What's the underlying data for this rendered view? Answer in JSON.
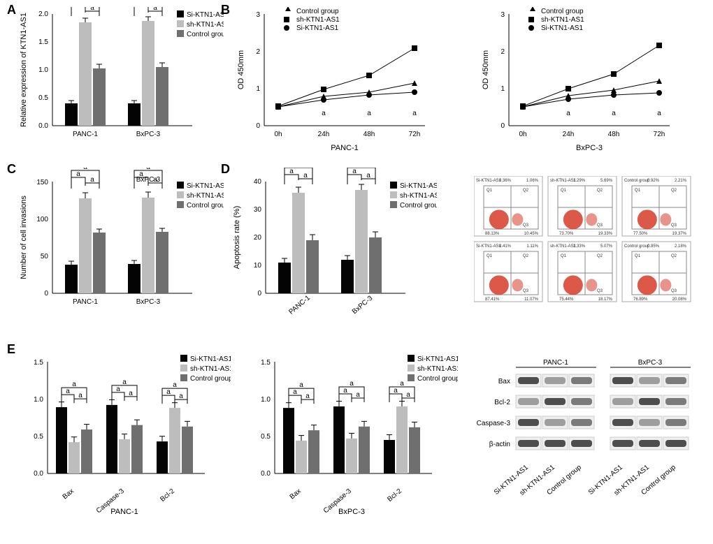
{
  "series_names": {
    "si": "Si-KTN1-AS1",
    "sh": "sh-KTN1-AS1",
    "ctrl": "Control group"
  },
  "colors": {
    "si": "#040404",
    "sh": "#bdbdbd",
    "ctrl": "#6f6f6f",
    "axis": "#000",
    "grid": "#000",
    "blot_bg": "#efefef",
    "blot_dark": "#3c3c3c",
    "flow_red": "#d63c2a"
  },
  "sig_letter": "a",
  "panelA": {
    "ylabel": "Relative expression of KTN1-AS1",
    "groups": [
      "PANC-1",
      "BxPC-3"
    ],
    "ylim": [
      0,
      2.0
    ],
    "ytick": 0.5,
    "bars": {
      "si": [
        0.4,
        0.4
      ],
      "sh": [
        1.85,
        1.88
      ],
      "ctrl": [
        1.03,
        1.05
      ]
    },
    "err": {
      "si": [
        0.03,
        0.03
      ],
      "sh": [
        0.07,
        0.07
      ],
      "ctrl": [
        0.07,
        0.07
      ]
    }
  },
  "panelB": {
    "ylabel": "OD 450mm",
    "timepoints": [
      "0h",
      "24h",
      "48h",
      "72h"
    ],
    "ylim": [
      0,
      3
    ],
    "ytick": 1,
    "panc1": {
      "ctrl": [
        0.5,
        0.78,
        0.9,
        1.15
      ],
      "sh": [
        0.52,
        0.98,
        1.35,
        2.08
      ],
      "si": [
        0.5,
        0.7,
        0.82,
        0.9
      ]
    },
    "bxpc3": {
      "ctrl": [
        0.5,
        0.8,
        0.95,
        1.2
      ],
      "sh": [
        0.52,
        1.0,
        1.38,
        2.15
      ],
      "si": [
        0.5,
        0.72,
        0.83,
        0.88
      ]
    },
    "xlabel_panc1": "PANC-1",
    "xlabel_bxpc3": "BxPC-3"
  },
  "panelC": {
    "ylabel": "Number of cell invasions",
    "groups": [
      "PANC-1",
      "BxPC-3"
    ],
    "ylim": [
      0,
      150
    ],
    "ytick": 50,
    "bars": {
      "si": [
        38,
        39
      ],
      "sh": [
        128,
        129
      ],
      "ctrl": [
        82,
        83
      ]
    },
    "err": {
      "si": [
        4,
        4
      ],
      "sh": [
        8,
        8
      ],
      "ctrl": [
        4,
        4
      ]
    }
  },
  "panelD": {
    "ylabel": "Apoptosis rate (%)",
    "groups": [
      "PANC-1",
      "BxPC-3"
    ],
    "ylim": [
      0,
      40
    ],
    "ytick": 10,
    "bars": {
      "si": [
        11,
        12
      ],
      "sh": [
        36,
        37
      ],
      "ctrl": [
        19,
        20
      ]
    },
    "err": {
      "si": [
        1.5,
        1.5
      ],
      "sh": [
        2,
        2
      ],
      "ctrl": [
        2,
        2
      ]
    },
    "flow": [
      [
        {
          "title": "Si-KTN1-AS1",
          "q1": "0.36%",
          "q2": "1.06%",
          "q4": "88.13%",
          "q3": "10.45%"
        },
        {
          "title": "sh-KTN1-AS1",
          "q1": "1.29%",
          "q2": "5.69%",
          "q4": "73.70%",
          "q3": "19.33%"
        },
        {
          "title": "Control group",
          "q1": "0.92%",
          "q2": "2.21%",
          "q4": "77.50%",
          "q3": "19.37%"
        }
      ],
      [
        {
          "title": "Si-KTN1-AS1",
          "q1": "0.41%",
          "q2": "1.11%",
          "q4": "87.41%",
          "q3": "11.07%"
        },
        {
          "title": "sh-KTN1-AS1",
          "q1": "1.33%",
          "q2": "5.07%",
          "q4": "75.44%",
          "q3": "18.17%"
        },
        {
          "title": "Control group",
          "q1": "0.85%",
          "q2": "2.18%",
          "q4": "76.89%",
          "q3": "20.08%"
        }
      ]
    ],
    "flow_row_labels": [
      "PANC-1",
      "BxPC-3"
    ]
  },
  "panelE": {
    "proteins": [
      "Bax",
      "Caspase-3",
      "Bcl-2"
    ],
    "ylim": [
      0,
      1.5
    ],
    "ytick": 0.5,
    "panc1": {
      "si": [
        0.89,
        0.92,
        0.43
      ],
      "sh": [
        0.42,
        0.46,
        0.88
      ],
      "ctrl": [
        0.59,
        0.65,
        0.63
      ]
    },
    "bxpc3": {
      "si": [
        0.88,
        0.9,
        0.45
      ],
      "sh": [
        0.44,
        0.47,
        0.9
      ],
      "ctrl": [
        0.58,
        0.63,
        0.62
      ]
    },
    "err": 0.07,
    "xlabel_panc1": "PANC-1",
    "xlabel_bxpc3": "BxPC-3",
    "blot_rows": [
      "Bax",
      "Bcl-2",
      "Caspase-3",
      "β-actin"
    ],
    "blot_cols": [
      "Si-KTN1-AS1",
      "sh-KTN1-AS1",
      "Control group",
      "Si-KTN1-AS1",
      "sh-KTN1-AS1",
      "Control group"
    ],
    "blot_groups": [
      "PANC-1",
      "BxPC-3"
    ]
  }
}
